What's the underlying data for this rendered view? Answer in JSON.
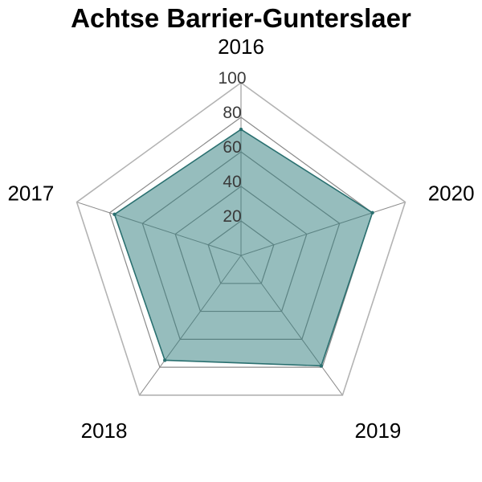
{
  "chart_data": {
    "type": "radar",
    "title": "Achtse Barrier-Gunterslaer",
    "categories": [
      "2016",
      "2020",
      "2019",
      "2018",
      "2017"
    ],
    "values": [
      73,
      80,
      79,
      75,
      77
    ],
    "rlim": [
      0,
      100
    ],
    "ticks": [
      "20",
      "40",
      "60",
      "80",
      "100"
    ],
    "grid": true,
    "colors": {
      "fill": "#2e7b7b",
      "line": "#2a7070",
      "outer_grid": "#b3b3b3",
      "inner_grid": "#8a8a8a"
    }
  }
}
